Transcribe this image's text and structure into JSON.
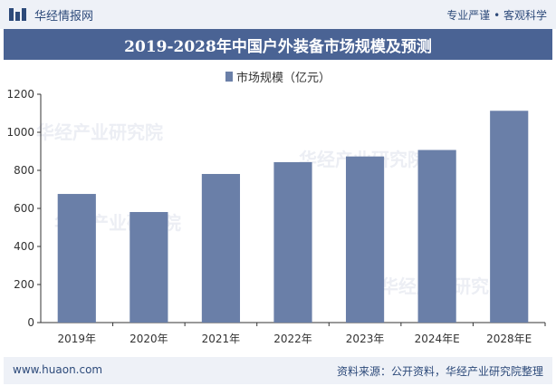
{
  "header": {
    "logo_text": "华经情报网",
    "tagline": "专业严谨 • 客观科学"
  },
  "title": "2019-2028年中国户外装备市场规模及预测",
  "footer": {
    "website": "www.huaon.com",
    "source": "资料来源：公开资料，华经产业研究院整理"
  },
  "watermark": "华经产业研究院",
  "colors": {
    "bar": "#6a7fa8",
    "title_bg": "#4a6394",
    "brand": "#2d4a7a"
  },
  "chart_data": {
    "type": "bar",
    "categories": [
      "2019年",
      "2020年",
      "2021年",
      "2022年",
      "2023年",
      "2024年E",
      "2028年E"
    ],
    "series": [
      {
        "name": "市场规模（亿元）",
        "values": [
          676,
          581,
          781,
          843,
          873,
          907,
          1113
        ]
      }
    ],
    "ylim": [
      0,
      1200
    ],
    "yticks": [
      0,
      200,
      400,
      600,
      800,
      1000,
      1200
    ],
    "grid": false,
    "legend_position": "top-center"
  }
}
